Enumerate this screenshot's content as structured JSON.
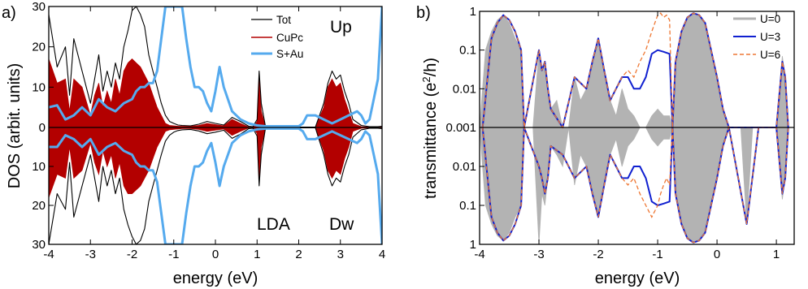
{
  "figure": {
    "panel_a_label": "a)",
    "panel_b_label": "b)"
  },
  "chart_data": [
    {
      "type": "area",
      "panel": "a)",
      "xlabel": "energy (eV)",
      "ylabel": "DOS (arbit. units)",
      "xlim": [
        -4,
        4
      ],
      "ylim_up": [
        0,
        30
      ],
      "ylim_down": [
        0,
        30
      ],
      "xticks": [
        "-4",
        "-3",
        "-2",
        "-1",
        "0",
        "1",
        "2",
        "3",
        "4"
      ],
      "yticks_up": [
        "0",
        "10",
        "20",
        "30"
      ],
      "yticks_down": [
        "10",
        "20",
        "30"
      ],
      "annotations": {
        "up": "Up",
        "method": "LDA",
        "down": "Dw"
      },
      "legend": {
        "position": "top-right",
        "entries": [
          "Tot",
          "CuPc",
          "S+Au"
        ]
      },
      "colors": {
        "Tot": "#000000",
        "CuPc": "#b30000",
        "S+Au": "#55aaee"
      },
      "series": [
        {
          "name": "Tot",
          "style": "line",
          "x": [
            -4.0,
            -3.8,
            -3.6,
            -3.5,
            -3.4,
            -3.2,
            -3.0,
            -2.9,
            -2.8,
            -2.7,
            -2.6,
            -2.5,
            -2.4,
            -2.3,
            -2.2,
            -2.1,
            -2.0,
            -1.9,
            -1.8,
            -1.7,
            -1.6,
            -1.5,
            -1.4,
            -1.3,
            -1.2,
            -1.1,
            -1.0,
            -0.9,
            -0.8,
            -0.6,
            -0.4,
            -0.2,
            0.0,
            0.2,
            0.4,
            0.6,
            0.8,
            0.9,
            1.0,
            1.05,
            1.1,
            1.2,
            1.4,
            1.6,
            1.8,
            2.0,
            2.2,
            2.4,
            2.6,
            2.7,
            2.8,
            2.9,
            3.0,
            3.1,
            3.2,
            3.3,
            3.5,
            3.7,
            3.9,
            4.0
          ],
          "up": [
            28,
            15,
            20,
            8,
            22,
            14,
            6,
            12,
            18,
            9,
            14,
            10,
            16,
            12,
            20,
            24,
            29,
            30,
            28,
            25,
            18,
            14,
            10,
            6,
            3,
            1.5,
            1,
            0.6,
            0.5,
            0.4,
            0.8,
            1.5,
            1,
            0.6,
            2.5,
            1.5,
            0.3,
            0.2,
            2,
            14,
            6,
            0.3,
            0.1,
            0.1,
            0.1,
            0.1,
            0.1,
            0.1,
            6,
            11,
            14,
            12,
            13,
            9,
            6,
            2,
            0.5,
            0.2,
            0.2,
            0.3
          ],
          "down": [
            30,
            17,
            21,
            9,
            23,
            15,
            7,
            13,
            19,
            10,
            15,
            11,
            17,
            13,
            21,
            25,
            28,
            30,
            29,
            26,
            19,
            15,
            11,
            7,
            3.5,
            2,
            1.2,
            0.8,
            0.6,
            0.5,
            0.9,
            1.6,
            1.2,
            0.7,
            2.8,
            1.7,
            0.3,
            0.2,
            2.2,
            15,
            7,
            0.3,
            0.1,
            0.1,
            0.1,
            0.1,
            0.1,
            0.1,
            7,
            12,
            15,
            13,
            14,
            10,
            7,
            2.5,
            0.6,
            0.2,
            0.2,
            0.3
          ]
        },
        {
          "name": "CuPc",
          "style": "filled",
          "x": [
            -4.0,
            -3.8,
            -3.6,
            -3.5,
            -3.4,
            -3.2,
            -3.0,
            -2.9,
            -2.8,
            -2.7,
            -2.6,
            -2.5,
            -2.4,
            -2.3,
            -2.2,
            -2.1,
            -2.0,
            -1.9,
            -1.8,
            -1.7,
            -1.6,
            -1.5,
            -1.4,
            -1.3,
            -1.2,
            -1.1,
            -1.0,
            -0.9,
            -0.8,
            -0.6,
            -0.4,
            -0.2,
            0.0,
            0.2,
            0.4,
            0.6,
            0.8,
            0.9,
            1.0,
            1.05,
            1.1,
            1.2,
            1.4,
            1.6,
            1.8,
            2.0,
            2.2,
            2.4,
            2.6,
            2.7,
            2.8,
            2.9,
            3.0,
            3.1,
            3.2,
            3.3,
            3.5,
            3.7,
            3.9,
            4.0
          ],
          "up": [
            17,
            11,
            12,
            4,
            12,
            10,
            3,
            8,
            11,
            5,
            9,
            6,
            12,
            8,
            14,
            16,
            17,
            16,
            15,
            13,
            11,
            8,
            5,
            3,
            1,
            0.5,
            0.4,
            0.3,
            0.3,
            0.3,
            0.5,
            1,
            0.7,
            0.4,
            2,
            1,
            0.1,
            0.1,
            1.5,
            12,
            4,
            0.1,
            0.05,
            0.05,
            0.05,
            0.05,
            0.05,
            0.05,
            5,
            10,
            12,
            10,
            11,
            7,
            4,
            1,
            0.2,
            0.1,
            0.1,
            0.1
          ],
          "down": [
            18,
            12,
            13,
            5,
            13,
            11,
            4,
            9,
            12,
            6,
            10,
            7,
            13,
            9,
            15,
            17,
            17,
            16,
            15,
            13,
            11,
            8,
            5,
            3,
            1,
            0.6,
            0.5,
            0.4,
            0.3,
            0.3,
            0.5,
            1,
            0.7,
            0.4,
            2,
            1,
            0.1,
            0.1,
            1.5,
            13,
            5,
            0.1,
            0.05,
            0.05,
            0.05,
            0.05,
            0.05,
            0.05,
            6,
            11,
            13,
            11,
            12,
            8,
            5,
            1,
            0.2,
            0.1,
            0.1,
            0.1
          ]
        },
        {
          "name": "S+Au",
          "style": "line",
          "x": [
            -4.0,
            -3.8,
            -3.6,
            -3.4,
            -3.2,
            -3.0,
            -2.8,
            -2.6,
            -2.4,
            -2.2,
            -2.0,
            -1.9,
            -1.8,
            -1.7,
            -1.6,
            -1.5,
            -1.4,
            -1.3,
            -1.2,
            -1.1,
            -1.0,
            -0.9,
            -0.8,
            -0.7,
            -0.6,
            -0.5,
            -0.4,
            -0.3,
            -0.2,
            -0.1,
            0.0,
            0.1,
            0.2,
            0.4,
            0.6,
            0.8,
            1.0,
            1.2,
            1.4,
            1.6,
            1.8,
            1.9,
            2.0,
            2.1,
            2.2,
            2.4,
            2.6,
            2.8,
            3.0,
            3.2,
            3.4,
            3.5,
            3.6,
            3.7,
            3.8,
            3.9,
            4.0
          ],
          "up": [
            5,
            5.5,
            2,
            3,
            5,
            3,
            7,
            5,
            4,
            6,
            7,
            9,
            10,
            10,
            11,
            11,
            14,
            22,
            30,
            30,
            30,
            30,
            30,
            22,
            15,
            10,
            10,
            9,
            6,
            4,
            9,
            15,
            10,
            4,
            2,
            1,
            0.5,
            0.3,
            0.3,
            0.3,
            0.3,
            0.3,
            0.3,
            1,
            3,
            3,
            2,
            1,
            2,
            3,
            4,
            3,
            1,
            2,
            7,
            12,
            30
          ],
          "down": [
            5,
            5,
            2,
            3,
            5,
            3,
            7,
            5,
            4,
            6,
            7,
            9,
            10,
            10,
            11,
            11,
            14,
            22,
            30,
            30,
            30,
            30,
            30,
            22,
            15,
            10,
            10,
            9,
            6,
            4,
            9,
            15,
            10,
            4,
            2,
            1,
            0.5,
            0.3,
            0.3,
            0.3,
            0.3,
            0.3,
            0.3,
            1,
            3,
            3,
            2,
            1,
            2,
            3,
            4,
            3,
            1,
            2,
            7,
            12,
            30
          ]
        }
      ]
    },
    {
      "type": "area",
      "panel": "b)",
      "xlabel": "energy (eV)",
      "ylabel": "transmittance (e²/h)",
      "ylabel_main": "transmittance (e",
      "ylabel_sup": "2",
      "ylabel_tail": "/h)",
      "yscale": "log",
      "xlim": [
        -4,
        1.3
      ],
      "ylim": [
        0.001,
        1
      ],
      "xticks": [
        "-4",
        "-3",
        "-2",
        "-1",
        "0",
        "1"
      ],
      "yticks_up": [
        "0.001",
        "0.01",
        "0.1",
        "1"
      ],
      "yticks_down": [
        "0.01",
        "0.1",
        "1"
      ],
      "legend": {
        "position": "top-right",
        "entries": [
          "U=0",
          "U=3",
          "U=6"
        ]
      },
      "colors": {
        "U=0": "#b3b3b3",
        "U=3": "#1020d0",
        "U=6": "#ee7733"
      },
      "series": [
        {
          "name": "U=0",
          "style": "filled",
          "x": [
            -4.0,
            -3.9,
            -3.8,
            -3.7,
            -3.6,
            -3.5,
            -3.4,
            -3.3,
            -3.25,
            -3.1,
            -3.0,
            -2.95,
            -2.9,
            -2.85,
            -2.8,
            -2.7,
            -2.6,
            -2.5,
            -2.4,
            -2.3,
            -2.2,
            -2.1,
            -2.0,
            -1.9,
            -1.8,
            -1.7,
            -1.6,
            -1.5,
            -1.4,
            -1.3,
            -1.2,
            -1.1,
            -1.0,
            -0.9,
            -0.8,
            -0.75,
            -0.7,
            -0.6,
            -0.5,
            -0.4,
            -0.3,
            -0.2,
            -0.1,
            0.0,
            0.1,
            0.2,
            0.3,
            0.4,
            0.5,
            0.6,
            0.8,
            1.0,
            1.1,
            1.15,
            1.2,
            1.3
          ],
          "up": [
            0.001,
            0.1,
            0.3,
            0.6,
            0.8,
            0.5,
            0.2,
            0.1,
            0.001,
            0.001,
            0.1,
            0.03,
            0.05,
            0.01,
            0.003,
            0.005,
            0.001,
            0.001,
            0.02,
            0.005,
            0.01,
            0.05,
            0.2,
            0.03,
            0.005,
            0.002,
            0.01,
            0.003,
            0.002,
            0.001,
            0.001,
            0.002,
            0.003,
            0.002,
            0.002,
            0.001,
            0.05,
            0.3,
            0.7,
            0.9,
            0.8,
            0.5,
            0.1,
            0.02,
            0.003,
            0.001,
            0.001,
            0.001,
            0.001,
            0.001,
            0.001,
            0.001,
            0.07,
            0.02,
            0.001,
            0.001
          ],
          "down": [
            0.001,
            0.1,
            0.3,
            0.6,
            0.8,
            0.5,
            0.2,
            0.1,
            0.001,
            0.001,
            1,
            0.05,
            0.1,
            0.02,
            0.003,
            0.005,
            0.01,
            0.001,
            0.03,
            0.005,
            0.01,
            0.05,
            0.2,
            0.03,
            0.005,
            0.002,
            0.01,
            0.003,
            0.002,
            0.001,
            0.001,
            0.002,
            0.003,
            0.002,
            0.002,
            0.001,
            0.05,
            0.3,
            0.7,
            0.9,
            0.8,
            0.5,
            0.1,
            0.02,
            0.003,
            0.001,
            0.001,
            0.001,
            0.3,
            0.001,
            0.001,
            0.001,
            0.07,
            0.02,
            0.001,
            0.001
          ]
        },
        {
          "name": "U=3",
          "style": "line",
          "x": [
            -3.95,
            -3.8,
            -3.7,
            -3.6,
            -3.5,
            -3.4,
            -3.3,
            -3.25,
            -3.0,
            -2.95,
            -2.9,
            -2.85,
            -2.8,
            -2.6,
            -2.4,
            -2.2,
            -2.1,
            -2.0,
            -1.9,
            -1.8,
            -1.7,
            -1.6,
            -1.5,
            -1.4,
            -1.3,
            -1.2,
            -1.1,
            -1.0,
            -0.9,
            -0.8,
            -0.75,
            -0.7,
            -0.6,
            -0.5,
            -0.4,
            -0.3,
            -0.2,
            -0.1,
            0.0,
            0.1,
            0.2,
            0.5,
            0.7,
            1.0,
            1.1,
            1.15,
            1.2
          ],
          "up": [
            0.001,
            0.2,
            0.5,
            0.8,
            0.6,
            0.3,
            0.1,
            0.001,
            0.1,
            0.03,
            0.05,
            0.01,
            0.003,
            0.001,
            0.02,
            0.01,
            0.05,
            0.2,
            0.03,
            0.005,
            0.01,
            0.02,
            0.02,
            0.01,
            0.01,
            0.02,
            0.08,
            0.1,
            0.09,
            0.08,
            0.001,
            0.05,
            0.3,
            0.7,
            0.9,
            0.8,
            0.5,
            0.1,
            0.02,
            0.003,
            0.001,
            0.001,
            0.001,
            0.001,
            0.05,
            0.02,
            0.001
          ],
          "down": [
            0.001,
            0.2,
            0.5,
            0.8,
            0.6,
            0.3,
            0.1,
            0.001,
            0.01,
            0.02,
            0.05,
            0.02,
            0.003,
            0.005,
            0.02,
            0.01,
            0.05,
            0.2,
            0.03,
            0.005,
            0.01,
            0.02,
            0.02,
            0.01,
            0.01,
            0.02,
            0.08,
            0.1,
            0.09,
            0.08,
            0.001,
            0.05,
            0.3,
            0.7,
            0.9,
            0.8,
            0.5,
            0.1,
            0.02,
            0.003,
            0.001,
            0.3,
            0.001,
            0.001,
            0.05,
            0.02,
            0.001
          ]
        },
        {
          "name": "U=6",
          "style": "dashed",
          "x": [
            -3.95,
            -3.8,
            -3.7,
            -3.6,
            -3.5,
            -3.4,
            -3.3,
            -3.25,
            -3.0,
            -2.95,
            -2.9,
            -2.85,
            -2.8,
            -2.6,
            -2.4,
            -2.2,
            -2.1,
            -2.0,
            -1.9,
            -1.8,
            -1.7,
            -1.6,
            -1.5,
            -1.4,
            -1.3,
            -1.2,
            -1.1,
            -1.0,
            -0.95,
            -0.9,
            -0.85,
            -0.8,
            -0.75,
            -0.7,
            -0.6,
            -0.5,
            -0.4,
            -0.3,
            -0.2,
            -0.1,
            0.0,
            0.1,
            0.2,
            0.5,
            0.7,
            1.0,
            1.1,
            1.15,
            1.2
          ],
          "up": [
            0.001,
            0.2,
            0.5,
            0.8,
            0.6,
            0.3,
            0.1,
            0.001,
            0.1,
            0.03,
            0.05,
            0.01,
            0.003,
            0.001,
            0.02,
            0.01,
            0.05,
            0.2,
            0.03,
            0.005,
            0.01,
            0.02,
            0.03,
            0.02,
            0.05,
            0.1,
            0.3,
            0.8,
            0.9,
            0.7,
            0.8,
            0.6,
            0.001,
            0.05,
            0.3,
            0.7,
            0.9,
            0.8,
            0.5,
            0.1,
            0.02,
            0.003,
            0.001,
            0.001,
            0.001,
            0.001,
            0.05,
            0.02,
            0.001
          ],
          "down": [
            0.001,
            0.2,
            0.5,
            0.8,
            0.6,
            0.3,
            0.1,
            0.001,
            0.01,
            0.02,
            0.05,
            0.02,
            0.003,
            0.005,
            0.02,
            0.01,
            0.05,
            0.2,
            0.03,
            0.005,
            0.01,
            0.02,
            0.03,
            0.02,
            0.05,
            0.1,
            0.2,
            0.1,
            0.05,
            0.03,
            0.02,
            0.03,
            0.001,
            0.05,
            0.3,
            0.7,
            0.9,
            0.8,
            0.5,
            0.1,
            0.02,
            0.003,
            0.001,
            0.3,
            0.001,
            0.001,
            0.05,
            0.02,
            0.001
          ]
        }
      ]
    }
  ]
}
